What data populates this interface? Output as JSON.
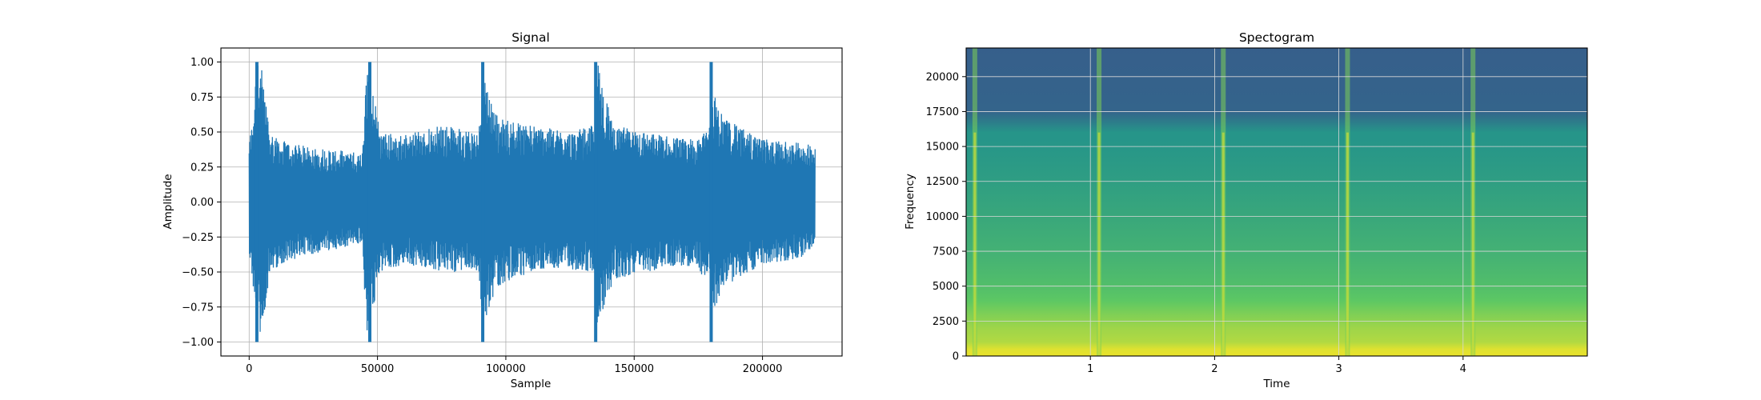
{
  "chart_data": [
    {
      "type": "line",
      "title": "Signal",
      "xlabel": "Sample",
      "ylabel": "Amplitude",
      "xlim": [
        -11000,
        231000
      ],
      "ylim": [
        -1.1,
        1.1
      ],
      "grid": true,
      "color": "#1f77b4",
      "xticks": [
        0,
        50000,
        100000,
        150000,
        200000
      ],
      "xtick_labels": [
        "0",
        "50000",
        "100000",
        "150000",
        "200000"
      ],
      "yticks": [
        -1.0,
        -0.75,
        -0.5,
        -0.25,
        0.0,
        0.25,
        0.5,
        0.75,
        1.0
      ],
      "ytick_labels": [
        "−1.00",
        "−0.75",
        "−0.50",
        "−0.25",
        "0.00",
        "0.25",
        "0.50",
        "0.75",
        "1.00"
      ],
      "samples": 220500,
      "series": [
        {
          "name": "signal",
          "envelope": {
            "x": [
              0,
              1500,
              3000,
              5000,
              8000,
              15000,
              30000,
              44000,
              46000,
              48000,
              51000,
              60000,
              75000,
              89500,
              91000,
              93000,
              97000,
              110000,
              125000,
              134500,
              136000,
              138000,
              142000,
              155000,
              170000,
              179000,
              181000,
              185000,
              200000,
              215000,
              220500
            ],
            "upper": [
              0.45,
              0.6,
              1.0,
              0.95,
              0.5,
              0.42,
              0.38,
              0.35,
              1.0,
              0.85,
              0.5,
              0.48,
              0.55,
              0.5,
              1.0,
              0.8,
              0.6,
              0.55,
              0.5,
              0.55,
              1.0,
              0.8,
              0.55,
              0.5,
              0.45,
              0.5,
              0.78,
              0.6,
              0.45,
              0.42,
              0.44
            ],
            "lower": [
              -0.35,
              -0.6,
              -1.0,
              -0.95,
              -0.5,
              -0.42,
              -0.35,
              -0.3,
              -1.0,
              -0.85,
              -0.5,
              -0.45,
              -0.5,
              -0.5,
              -1.0,
              -0.8,
              -0.6,
              -0.5,
              -0.48,
              -0.5,
              -1.0,
              -0.8,
              -0.55,
              -0.5,
              -0.45,
              -0.55,
              -0.78,
              -0.6,
              -0.45,
              -0.4,
              -0.3
            ]
          },
          "onsets": [
            3000,
            47000,
            91000,
            135000,
            180000
          ]
        }
      ]
    },
    {
      "type": "heatmap",
      "title": "Spectogram",
      "xlabel": "Time",
      "ylabel": "Frequency",
      "xlim": [
        0.0,
        5.0
      ],
      "ylim": [
        0,
        22050
      ],
      "grid": true,
      "colormap": "viridis",
      "xticks": [
        1,
        2,
        3,
        4
      ],
      "xtick_labels": [
        "1",
        "2",
        "3",
        "4"
      ],
      "yticks": [
        0,
        2500,
        5000,
        7500,
        10000,
        12500,
        15000,
        17500,
        20000
      ],
      "ytick_labels": [
        "0",
        "2500",
        "5000",
        "7500",
        "10000",
        "12500",
        "15000",
        "17500",
        "20000"
      ],
      "onset_times": [
        0.07,
        1.07,
        2.07,
        3.07,
        4.08
      ],
      "cutoff_frequency": 16000,
      "series": [
        {
          "name": "intensity_profile",
          "frequency": [
            0,
            500,
            1000,
            2000,
            3000,
            4000,
            5000,
            7000,
            10000,
            13000,
            15500,
            16000,
            17500,
            22050
          ],
          "intensity": [
            0.97,
            0.95,
            0.88,
            0.85,
            0.8,
            0.74,
            0.7,
            0.65,
            0.6,
            0.55,
            0.52,
            0.52,
            0.32,
            0.3
          ]
        }
      ]
    }
  ]
}
